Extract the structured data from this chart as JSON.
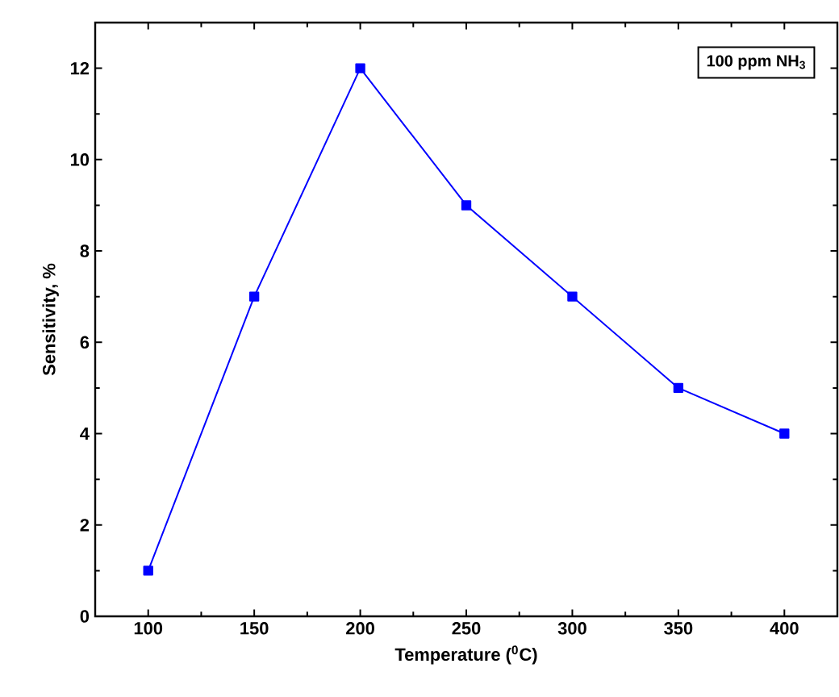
{
  "chart_data": {
    "type": "line",
    "xlabel": "Temperature ($^{0}$C)",
    "ylabel": "Sensitivity, %",
    "x": [
      100,
      150,
      200,
      250,
      300,
      350,
      400
    ],
    "series": [
      {
        "color": "#0000ff",
        "values": [
          1,
          7,
          12,
          9,
          7,
          5,
          4
        ]
      }
    ],
    "xlim": [
      75,
      425
    ],
    "ylim": [
      0,
      13
    ],
    "xticks": [
      100,
      150,
      200,
      250,
      300,
      350,
      400
    ],
    "yticks": [
      0,
      2,
      4,
      6,
      8,
      10,
      12
    ],
    "marker": "square",
    "line_style": "solid",
    "annotations": [
      "100 ppm NH$_{3}$"
    ]
  }
}
